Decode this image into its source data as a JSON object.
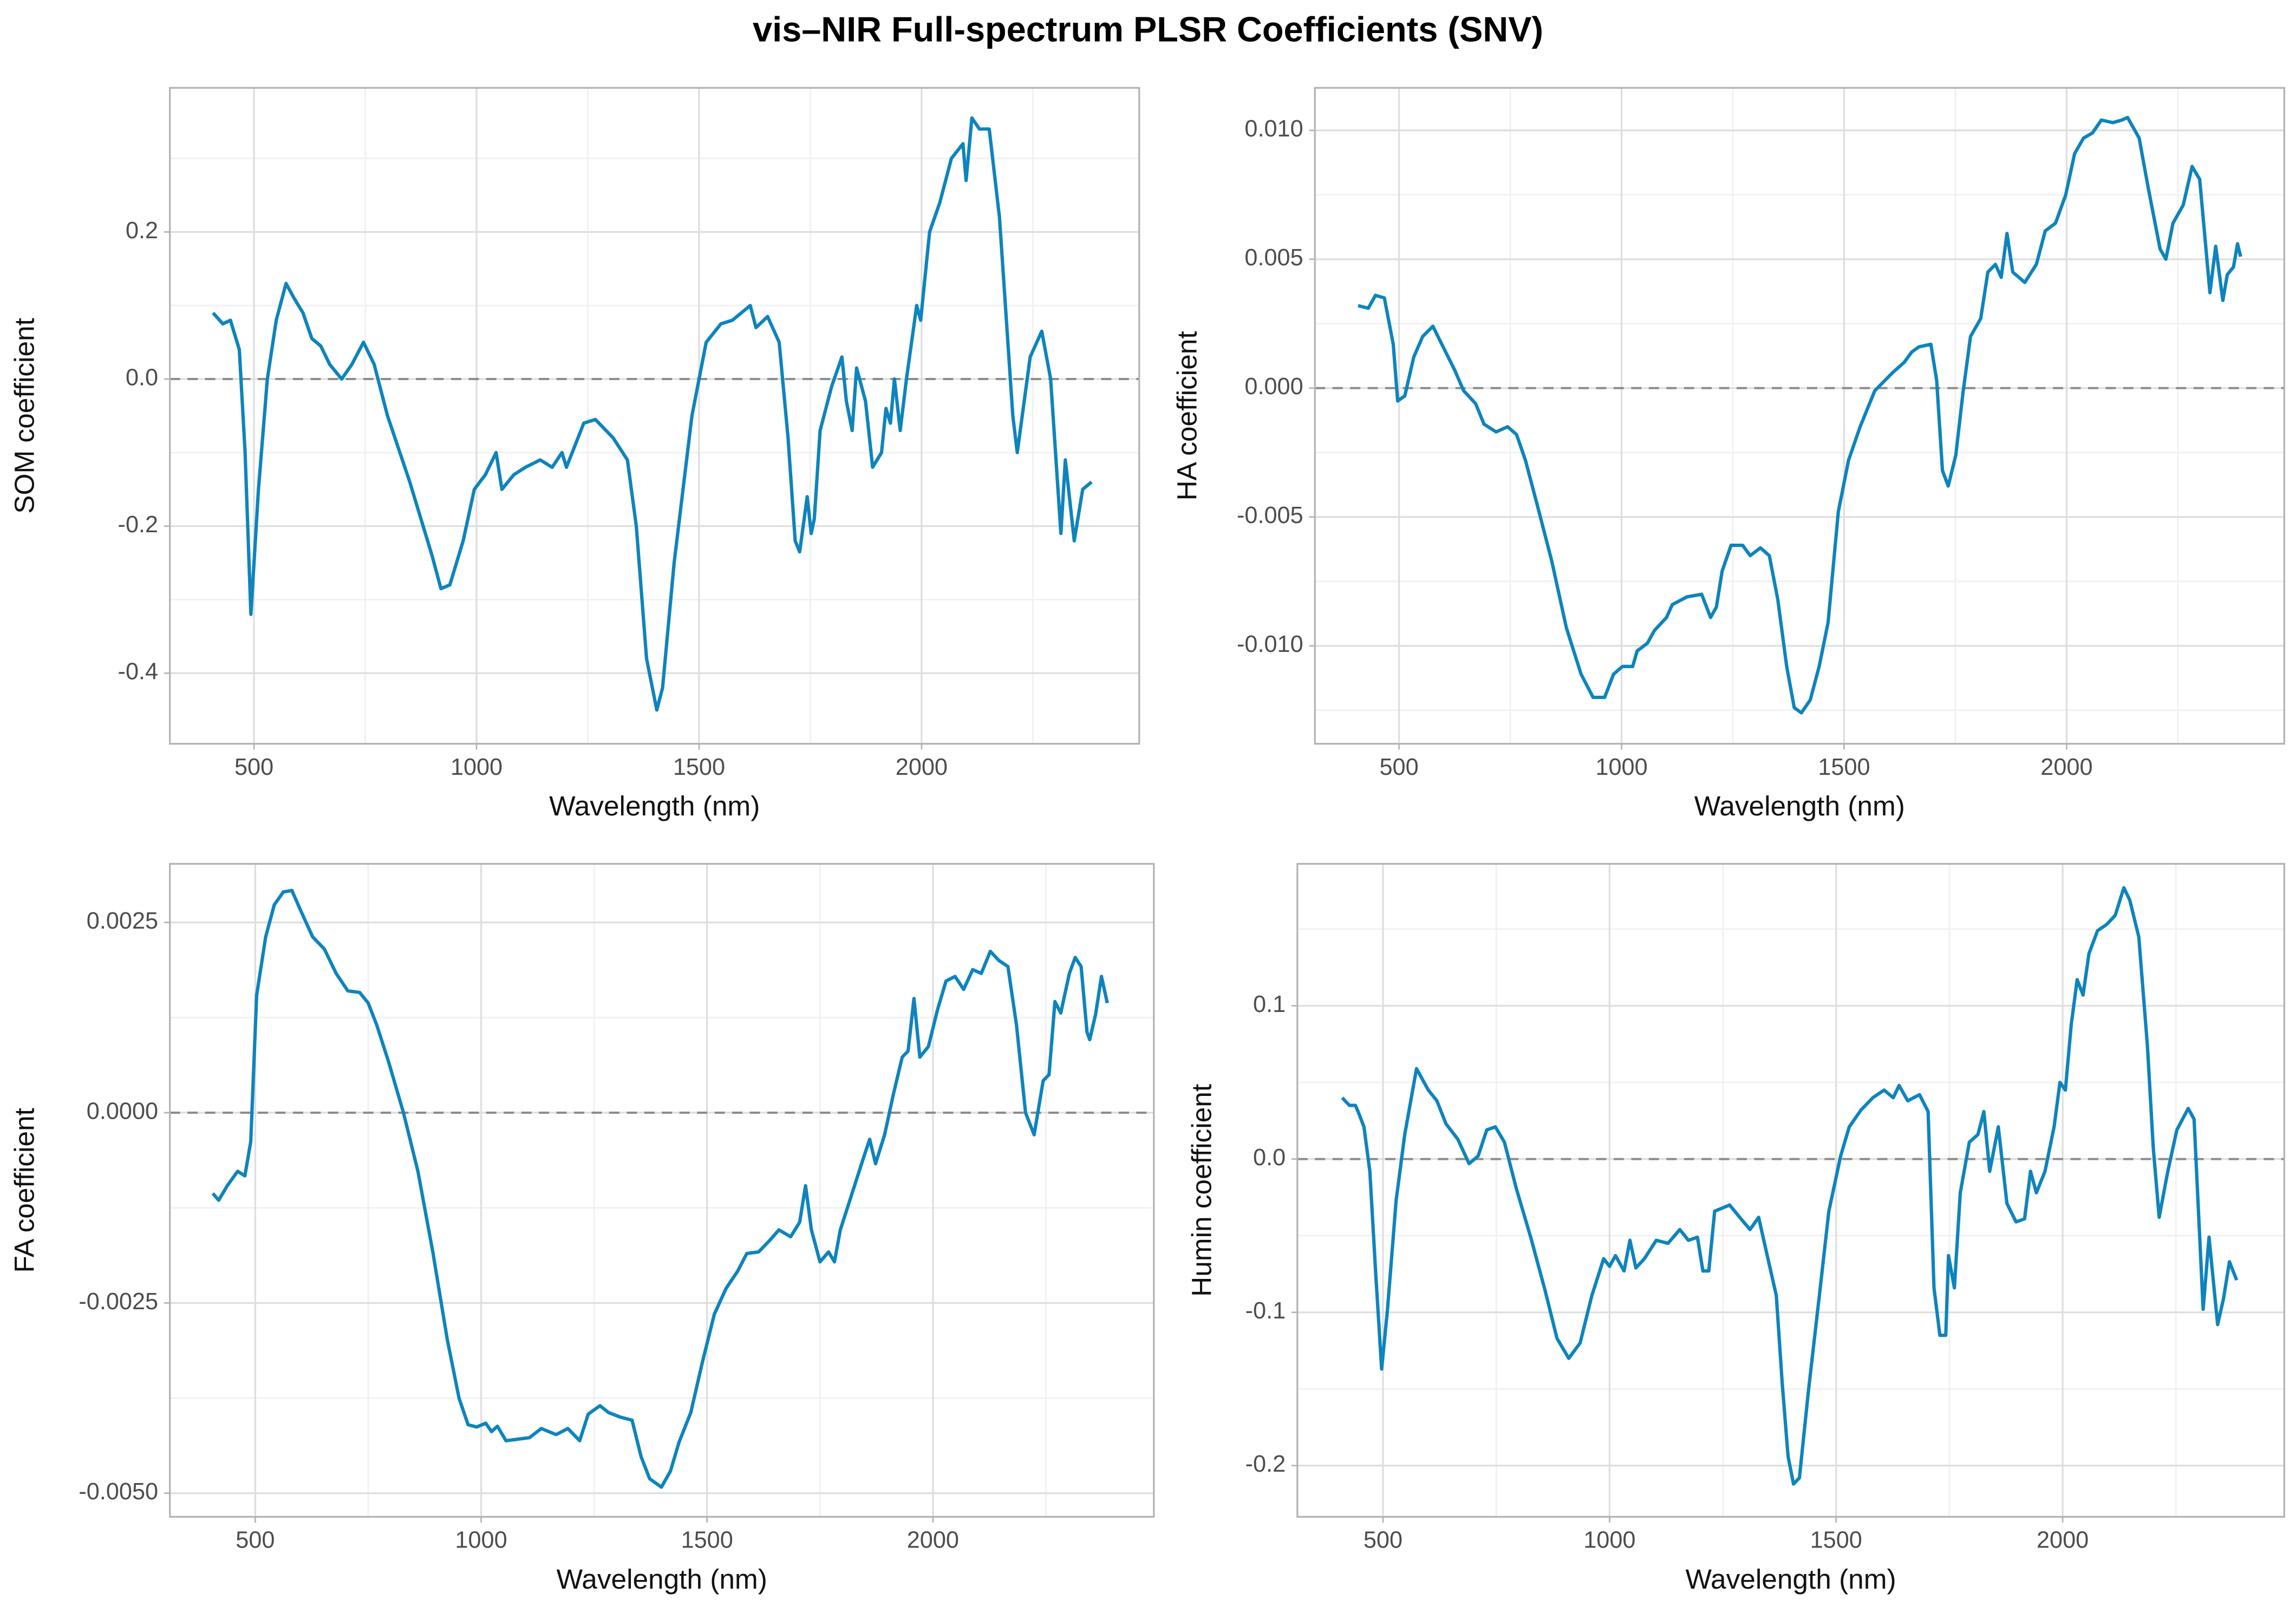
{
  "title": "vis–NIR Full-spectrum PLSR Coefficients (SNV)",
  "chart_data": [
    {
      "type": "line",
      "x_label": "Wavelength (nm)",
      "y_label": "SOM coefficient",
      "color": "#0e84bc",
      "hline": 0,
      "grid": true,
      "xlim": [
        311,
        2489
      ],
      "xticks": [
        500,
        1000,
        1500,
        2000
      ],
      "ylim": [
        -0.496,
        0.396
      ],
      "yticks": [
        -0.4,
        -0.2,
        {
          "value": 0,
          "label": "0.0"
        },
        0.2
      ],
      "x": [
        408,
        430,
        447,
        467,
        480,
        493,
        510,
        530,
        550,
        572,
        590,
        610,
        630,
        650,
        670,
        697,
        720,
        746,
        770,
        800,
        850,
        900,
        920,
        940,
        970,
        995,
        1020,
        1044,
        1057,
        1084,
        1110,
        1143,
        1170,
        1192,
        1202,
        1241,
        1267,
        1307,
        1339,
        1359,
        1382,
        1405,
        1418,
        1444,
        1484,
        1516,
        1549,
        1575,
        1615,
        1628,
        1654,
        1680,
        1700,
        1716,
        1726,
        1743,
        1752,
        1759,
        1772,
        1798,
        1821,
        1831,
        1844,
        1854,
        1874,
        1890,
        1910,
        1920,
        1930,
        1939,
        1952,
        1966,
        1989,
        1998,
        2018,
        2041,
        2067,
        2093,
        2100,
        2113,
        2130,
        2152,
        2175,
        2205,
        2215,
        2244,
        2270,
        2290,
        2313,
        2323,
        2343,
        2362,
        2382
      ],
      "values": [
        0.09,
        0.075,
        0.08,
        0.04,
        -0.1,
        -0.32,
        -0.15,
        0.0,
        0.08,
        0.13,
        0.11,
        0.09,
        0.055,
        0.045,
        0.02,
        0.0,
        0.02,
        0.05,
        0.02,
        -0.05,
        -0.14,
        -0.24,
        -0.285,
        -0.28,
        -0.22,
        -0.15,
        -0.13,
        -0.1,
        -0.15,
        -0.13,
        -0.12,
        -0.11,
        -0.12,
        -0.1,
        -0.12,
        -0.06,
        -0.055,
        -0.08,
        -0.11,
        -0.2,
        -0.38,
        -0.45,
        -0.42,
        -0.25,
        -0.05,
        0.05,
        0.075,
        0.08,
        0.1,
        0.07,
        0.085,
        0.05,
        -0.08,
        -0.22,
        -0.235,
        -0.16,
        -0.21,
        -0.19,
        -0.07,
        -0.01,
        0.03,
        -0.03,
        -0.07,
        0.015,
        -0.03,
        -0.12,
        -0.1,
        -0.04,
        -0.06,
        0.0,
        -0.07,
        0.0,
        0.1,
        0.08,
        0.2,
        0.24,
        0.3,
        0.32,
        0.27,
        0.355,
        0.34,
        0.34,
        0.22,
        -0.05,
        -0.1,
        0.03,
        0.065,
        0.0,
        -0.21,
        -0.11,
        -0.22,
        -0.15,
        -0.14
      ]
    },
    {
      "type": "line",
      "x_label": "Wavelength (nm)",
      "y_label": "HA coefficient",
      "color": "#0e84bc",
      "hline": 0,
      "grid": true,
      "xlim": [
        311,
        2489
      ],
      "xticks": [
        500,
        1000,
        1500,
        2000
      ],
      "ylim": [
        -0.0138,
        0.01165
      ],
      "yticks": [
        {
          "value": -0.01,
          "label": "-0.010"
        },
        -0.005,
        {
          "value": 0,
          "label": "0.000"
        },
        0.005,
        {
          "value": 0.01,
          "label": "0.010"
        }
      ],
      "x": [
        408,
        431,
        447,
        467,
        487,
        497,
        513,
        533,
        553,
        576,
        599,
        625,
        645,
        672,
        691,
        718,
        744,
        764,
        784,
        810,
        843,
        876,
        909,
        936,
        962,
        982,
        1002,
        1025,
        1035,
        1058,
        1074,
        1101,
        1114,
        1147,
        1180,
        1200,
        1213,
        1226,
        1246,
        1272,
        1289,
        1312,
        1332,
        1351,
        1371,
        1388,
        1404,
        1424,
        1444,
        1464,
        1487,
        1510,
        1536,
        1569,
        1609,
        1635,
        1652,
        1668,
        1695,
        1708,
        1721,
        1734,
        1751,
        1767,
        1784,
        1807,
        1823,
        1840,
        1853,
        1866,
        1879,
        1906,
        1932,
        1952,
        1975,
        1998,
        2018,
        2038,
        2058,
        2078,
        2104,
        2124,
        2137,
        2163,
        2183,
        2210,
        2223,
        2239,
        2262,
        2282,
        2299,
        2322,
        2335,
        2351,
        2361,
        2375,
        2384,
        2391
      ],
      "values": [
        0.0032,
        0.0031,
        0.0036,
        0.0035,
        0.0017,
        -0.0005,
        -0.0003,
        0.0012,
        0.002,
        0.0024,
        0.0016,
        0.0007,
        -0.0001,
        -0.0006,
        -0.0014,
        -0.0017,
        -0.0015,
        -0.0018,
        -0.0028,
        -0.0045,
        -0.0067,
        -0.0093,
        -0.0111,
        -0.012,
        -0.012,
        -0.0111,
        -0.0108,
        -0.0108,
        -0.0102,
        -0.0099,
        -0.0094,
        -0.0089,
        -0.0084,
        -0.0081,
        -0.008,
        -0.0089,
        -0.0085,
        -0.0071,
        -0.0061,
        -0.0061,
        -0.0065,
        -0.0062,
        -0.0065,
        -0.0082,
        -0.0108,
        -0.0124,
        -0.0126,
        -0.0121,
        -0.0108,
        -0.0091,
        -0.0048,
        -0.0028,
        -0.0015,
        -0.0001,
        0.0006,
        0.001,
        0.0014,
        0.0016,
        0.0017,
        0.0003,
        -0.0032,
        -0.0038,
        -0.0026,
        -0.0002,
        0.002,
        0.0027,
        0.0045,
        0.0048,
        0.0043,
        0.006,
        0.0045,
        0.0041,
        0.0048,
        0.0061,
        0.0064,
        0.0075,
        0.0091,
        0.0097,
        0.0099,
        0.0104,
        0.0103,
        0.0104,
        0.0105,
        0.0097,
        0.0078,
        0.0054,
        0.005,
        0.0064,
        0.0071,
        0.0086,
        0.0081,
        0.0037,
        0.0055,
        0.0034,
        0.0044,
        0.0047,
        0.0056,
        0.0051
      ]
    },
    {
      "type": "line",
      "x_label": "Wavelength (nm)",
      "y_label": "FA coefficient",
      "color": "#0e84bc",
      "hline": 0,
      "grid": true,
      "xlim": [
        311,
        2489
      ],
      "xticks": [
        500,
        1000,
        1500,
        2000
      ],
      "ylim": [
        -0.00531,
        0.00327
      ],
      "yticks": [
        {
          "value": -0.005,
          "label": "-0.0050"
        },
        -0.0025,
        {
          "value": 0,
          "label": "0.0000"
        },
        0.0025
      ],
      "x": [
        406,
        419,
        438,
        461,
        477,
        490,
        503,
        523,
        542,
        562,
        581,
        601,
        627,
        653,
        679,
        705,
        731,
        750,
        769,
        795,
        828,
        860,
        893,
        925,
        951,
        971,
        990,
        1010,
        1023,
        1036,
        1055,
        1081,
        1107,
        1133,
        1166,
        1192,
        1218,
        1237,
        1263,
        1282,
        1308,
        1334,
        1354,
        1373,
        1399,
        1419,
        1438,
        1464,
        1490,
        1516,
        1542,
        1568,
        1588,
        1614,
        1640,
        1659,
        1685,
        1705,
        1718,
        1731,
        1750,
        1769,
        1782,
        1795,
        1821,
        1847,
        1860,
        1873,
        1893,
        1912,
        1932,
        1945,
        1958,
        1971,
        1990,
        2010,
        2029,
        2049,
        2068,
        2088,
        2107,
        2127,
        2146,
        2166,
        2185,
        2205,
        2224,
        2244,
        2257,
        2270,
        2283,
        2302,
        2315,
        2328,
        2341,
        2347,
        2360,
        2373,
        2386
      ],
      "values": [
        -0.00106,
        -0.00115,
        -0.00096,
        -0.00077,
        -0.00083,
        -0.00038,
        0.00154,
        0.00231,
        0.00273,
        0.0029,
        0.00292,
        0.00265,
        0.00231,
        0.00215,
        0.00183,
        0.0016,
        0.00158,
        0.00144,
        0.00115,
        0.00067,
        0.0,
        -0.00077,
        -0.00183,
        -0.00298,
        -0.00375,
        -0.0041,
        -0.00413,
        -0.00408,
        -0.00419,
        -0.00412,
        -0.00431,
        -0.00429,
        -0.00427,
        -0.00415,
        -0.00423,
        -0.00415,
        -0.00431,
        -0.00396,
        -0.00385,
        -0.00394,
        -0.004,
        -0.00404,
        -0.00452,
        -0.00481,
        -0.00492,
        -0.00471,
        -0.00433,
        -0.00394,
        -0.00327,
        -0.00265,
        -0.00231,
        -0.00208,
        -0.00185,
        -0.00183,
        -0.00167,
        -0.00154,
        -0.00163,
        -0.00144,
        -0.00096,
        -0.00154,
        -0.00196,
        -0.00183,
        -0.00196,
        -0.00154,
        -0.00106,
        -0.00058,
        -0.00035,
        -0.00067,
        -0.00029,
        0.00023,
        0.00073,
        0.00081,
        0.0015,
        0.00073,
        0.00087,
        0.00135,
        0.00173,
        0.00179,
        0.00162,
        0.00188,
        0.00183,
        0.00212,
        0.002,
        0.00192,
        0.00115,
        0.0,
        -0.00029,
        0.00042,
        0.0005,
        0.00146,
        0.00131,
        0.00183,
        0.00204,
        0.00192,
        0.00106,
        0.00096,
        0.00129,
        0.00179,
        0.00144
      ]
    },
    {
      "type": "line",
      "x_label": "Wavelength (nm)",
      "y_label": "Humin coefficient",
      "color": "#0e84bc",
      "hline": 0,
      "grid": true,
      "xlim": [
        311,
        2489
      ],
      "xticks": [
        500,
        1000,
        1500,
        2000
      ],
      "ylim": [
        -0.2334,
        0.1926
      ],
      "yticks": [
        -0.2,
        -0.1,
        {
          "value": 0,
          "label": "0.0"
        },
        0.1
      ],
      "x": [
        410,
        426,
        439,
        445,
        458,
        471,
        484,
        497,
        510,
        529,
        548,
        574,
        600,
        619,
        639,
        665,
        690,
        710,
        729,
        748,
        768,
        794,
        826,
        858,
        884,
        910,
        935,
        961,
        987,
        1000,
        1013,
        1032,
        1045,
        1058,
        1077,
        1103,
        1129,
        1155,
        1174,
        1194,
        1206,
        1219,
        1232,
        1265,
        1290,
        1310,
        1329,
        1348,
        1368,
        1381,
        1394,
        1406,
        1419,
        1439,
        1465,
        1484,
        1510,
        1529,
        1555,
        1581,
        1606,
        1626,
        1639,
        1658,
        1684,
        1703,
        1716,
        1729,
        1742,
        1748,
        1761,
        1774,
        1794,
        1813,
        1826,
        1839,
        1858,
        1877,
        1897,
        1916,
        1929,
        1942,
        1961,
        1981,
        1994,
        2006,
        2019,
        2032,
        2045,
        2058,
        2077,
        2097,
        2116,
        2135,
        2148,
        2168,
        2187,
        2200,
        2213,
        2232,
        2252,
        2277,
        2290,
        2310,
        2323,
        2342,
        2355,
        2368,
        2384
      ],
      "values": [
        0.04,
        0.035,
        0.035,
        0.031,
        0.021,
        -0.008,
        -0.075,
        -0.137,
        -0.098,
        -0.027,
        0.016,
        0.059,
        0.045,
        0.038,
        0.023,
        0.013,
        -0.003,
        0.002,
        0.019,
        0.021,
        0.011,
        -0.019,
        -0.051,
        -0.086,
        -0.117,
        -0.13,
        -0.12,
        -0.089,
        -0.065,
        -0.07,
        -0.063,
        -0.073,
        -0.053,
        -0.071,
        -0.065,
        -0.053,
        -0.055,
        -0.046,
        -0.053,
        -0.051,
        -0.073,
        -0.073,
        -0.034,
        -0.03,
        -0.039,
        -0.046,
        -0.038,
        -0.063,
        -0.089,
        -0.146,
        -0.194,
        -0.212,
        -0.208,
        -0.151,
        -0.084,
        -0.034,
        0.002,
        0.021,
        0.032,
        0.04,
        0.045,
        0.04,
        0.048,
        0.038,
        0.042,
        0.031,
        -0.084,
        -0.115,
        -0.115,
        -0.063,
        -0.084,
        -0.022,
        0.011,
        0.016,
        0.031,
        -0.008,
        0.021,
        -0.029,
        -0.041,
        -0.039,
        -0.008,
        -0.022,
        -0.008,
        0.021,
        0.05,
        0.045,
        0.088,
        0.117,
        0.107,
        0.134,
        0.149,
        0.153,
        0.159,
        0.177,
        0.169,
        0.145,
        0.074,
        0.007,
        -0.038,
        -0.008,
        0.019,
        0.033,
        0.026,
        -0.098,
        -0.051,
        -0.108,
        -0.091,
        -0.067,
        -0.079
      ]
    }
  ]
}
